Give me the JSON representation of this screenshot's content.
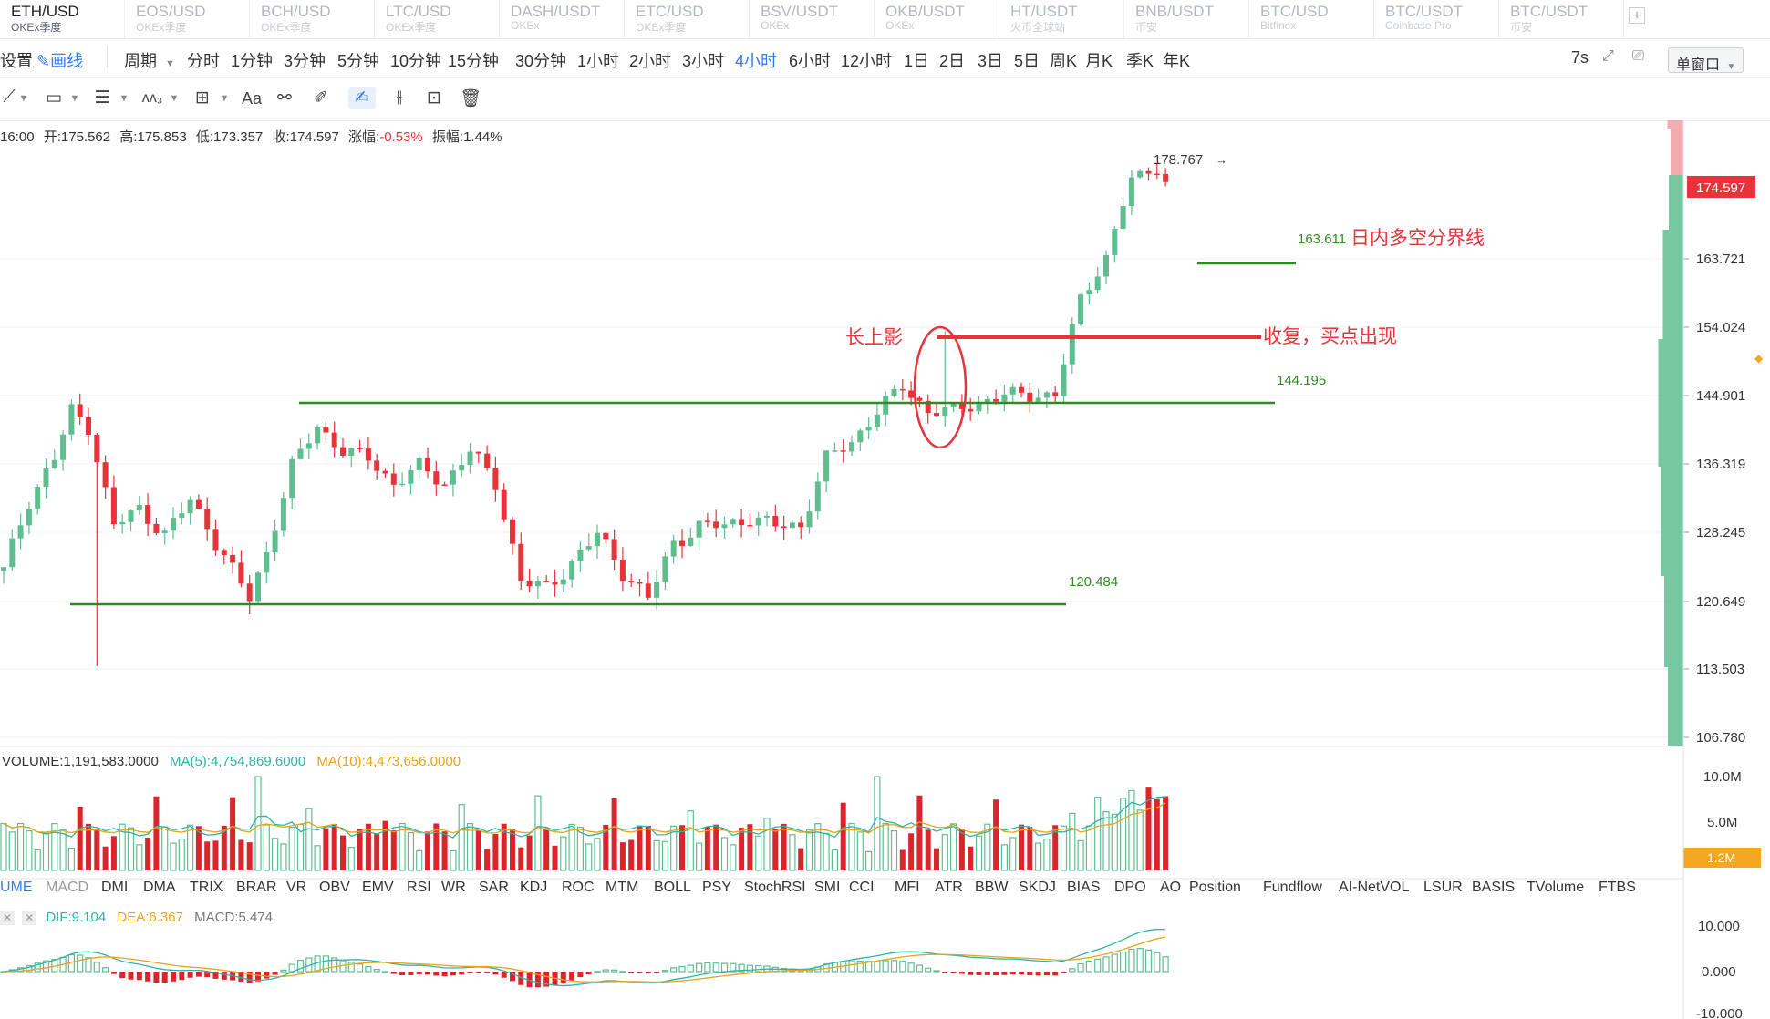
{
  "tabs": [
    {
      "pair": "ETH/USD",
      "exchange": "OKEx季度",
      "active": true
    },
    {
      "pair": "EOS/USD",
      "exchange": "OKEx季度"
    },
    {
      "pair": "BCH/USD",
      "exchange": "OKEx季度"
    },
    {
      "pair": "LTC/USD",
      "exchange": "OKEx季度"
    },
    {
      "pair": "DASH/USDT",
      "exchange": "OKEx"
    },
    {
      "pair": "ETC/USD",
      "exchange": "OKEx季度"
    },
    {
      "pair": "BSV/USDT",
      "exchange": "OKEx"
    },
    {
      "pair": "OKB/USDT",
      "exchange": "OKEx"
    },
    {
      "pair": "HT/USDT",
      "exchange": "火币全球站"
    },
    {
      "pair": "BNB/USDT",
      "exchange": "币安"
    },
    {
      "pair": "BTC/USD",
      "exchange": "Bitfinex"
    },
    {
      "pair": "BTC/USDT",
      "exchange": "Coinbase Pro"
    },
    {
      "pair": "BTC/USDT",
      "exchange": "币安"
    }
  ],
  "toolbar": {
    "settings": "设置",
    "draw": "画线",
    "period": "周期",
    "intervals": [
      "分时",
      "1分钟",
      "3分钟",
      "5分钟",
      "10分钟",
      "15分钟",
      "30分钟",
      "1小时",
      "2小时",
      "3小时",
      "4小时",
      "6小时",
      "12小时",
      "1日",
      "2日",
      "3日",
      "5日",
      "周K",
      "月K",
      "季K",
      "年K"
    ],
    "active_interval": "4小时",
    "refresh": "7s",
    "window_mode": "单窗口"
  },
  "drawtools": {
    "text_tool": "Aa"
  },
  "ohlc": {
    "time": "16:00",
    "open_label": "开:",
    "open": "175.562",
    "high_label": "高:",
    "high": "175.853",
    "low_label": "低:",
    "low": "173.357",
    "close_label": "收:",
    "close": "174.597",
    "change_label": "涨幅:",
    "change": "-0.53%",
    "amp_label": "振幅:",
    "amp": "1.44%"
  },
  "price_axis": {
    "ticks": [
      "163.721",
      "154.024",
      "144.901",
      "136.319",
      "128.245",
      "120.649",
      "113.503",
      "106.780"
    ],
    "current": "174.597",
    "colors": {
      "up": "#5fbe8f",
      "down": "#e8333a",
      "current_badge": "#e8333a"
    }
  },
  "annotations": {
    "high_label": "178.767",
    "level_163": "163.611",
    "level_163_text": "日内多空分界线",
    "level_154_text": "收复，买点出现",
    "long_shadow_text": "长上影",
    "level_144": "144.195",
    "level_120": "120.484"
  },
  "volume": {
    "title": "VOLUME:1,191,583.0000",
    "ma5": "MA(5):4,754,869.6000",
    "ma10": "MA(10):4,473,656.0000",
    "ticks": [
      "10.0M",
      "5.0M"
    ],
    "current": "1.2M"
  },
  "indicators": [
    "UME",
    "MACD",
    "DMI",
    "DMA",
    "TRIX",
    "BRAR",
    "VR",
    "OBV",
    "EMV",
    "RSI",
    "WR",
    "SAR",
    "KDJ",
    "ROC",
    "MTM",
    "BOLL",
    "PSY",
    "StochRSI",
    "SMI",
    "CCI",
    "MFI",
    "ATR",
    "BBW",
    "SKDJ",
    "BIAS",
    "DPO",
    "AO",
    "Position",
    "Fundflow",
    "AI-NetVOL",
    "LSUR",
    "BASIS",
    "TVolume",
    "FTBS"
  ],
  "macd": {
    "dif": "DIF:9.104",
    "dea": "DEA:6.367",
    "macd": "MACD:5.474",
    "ticks": [
      "10.000",
      "0.000",
      "-10.000"
    ]
  },
  "chart_data": {
    "type": "candlestick",
    "symbol": "ETH/USD",
    "interval": "4小时",
    "price_levels": [
      120.484,
      144.195,
      154.024,
      163.611
    ],
    "y_ticks": [
      106.78,
      113.503,
      120.649,
      128.245,
      136.319,
      144.901,
      154.024,
      163.721
    ],
    "high": 178.767,
    "current": 174.597
  }
}
